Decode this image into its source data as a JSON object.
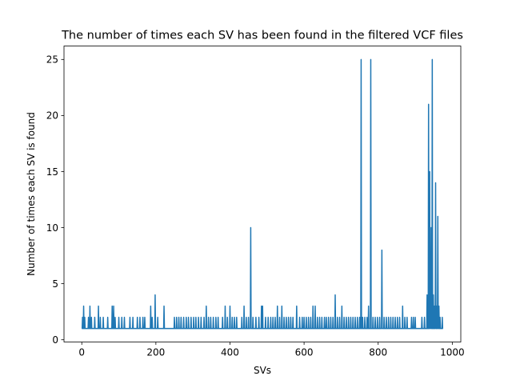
{
  "chart_data": {
    "type": "line",
    "title": "The number of times each SV has been found in the filtered VCF files",
    "xlabel": "SVs",
    "ylabel": "Number of times each SV is found",
    "xlim": [
      -48,
      1023
    ],
    "ylim": [
      -0.2,
      26.2
    ],
    "xticks": [
      0,
      200,
      400,
      600,
      800,
      1000
    ],
    "yticks": [
      0,
      5,
      10,
      15,
      20,
      25
    ],
    "grid": false,
    "legend": "none",
    "color": "#1f77b4",
    "baseline_value": 1,
    "x_range": [
      0,
      975
    ],
    "spikes": [
      [
        2,
        2
      ],
      [
        5,
        3
      ],
      [
        8,
        2
      ],
      [
        12,
        1
      ],
      [
        18,
        2
      ],
      [
        22,
        3
      ],
      [
        26,
        2
      ],
      [
        30,
        1
      ],
      [
        35,
        2
      ],
      [
        45,
        3
      ],
      [
        50,
        2
      ],
      [
        58,
        2
      ],
      [
        65,
        1
      ],
      [
        70,
        2
      ],
      [
        82,
        3
      ],
      [
        86,
        3
      ],
      [
        90,
        2
      ],
      [
        100,
        2
      ],
      [
        108,
        2
      ],
      [
        115,
        2
      ],
      [
        130,
        2
      ],
      [
        138,
        2
      ],
      [
        150,
        2
      ],
      [
        157,
        2
      ],
      [
        165,
        2
      ],
      [
        170,
        2
      ],
      [
        186,
        3
      ],
      [
        190,
        2
      ],
      [
        198,
        4
      ],
      [
        205,
        2
      ],
      [
        222,
        3
      ],
      [
        250,
        2
      ],
      [
        256,
        2
      ],
      [
        262,
        2
      ],
      [
        268,
        2
      ],
      [
        275,
        2
      ],
      [
        282,
        2
      ],
      [
        288,
        2
      ],
      [
        295,
        2
      ],
      [
        302,
        2
      ],
      [
        308,
        2
      ],
      [
        315,
        2
      ],
      [
        322,
        2
      ],
      [
        330,
        2
      ],
      [
        336,
        3
      ],
      [
        342,
        2
      ],
      [
        348,
        2
      ],
      [
        355,
        2
      ],
      [
        362,
        2
      ],
      [
        368,
        2
      ],
      [
        380,
        2
      ],
      [
        387,
        3
      ],
      [
        393,
        2
      ],
      [
        400,
        3
      ],
      [
        406,
        2
      ],
      [
        412,
        2
      ],
      [
        418,
        2
      ],
      [
        432,
        2
      ],
      [
        438,
        3
      ],
      [
        444,
        2
      ],
      [
        450,
        2
      ],
      [
        456,
        10
      ],
      [
        462,
        2
      ],
      [
        470,
        2
      ],
      [
        478,
        2
      ],
      [
        485,
        3
      ],
      [
        488,
        3
      ],
      [
        496,
        2
      ],
      [
        503,
        2
      ],
      [
        510,
        2
      ],
      [
        516,
        2
      ],
      [
        522,
        2
      ],
      [
        528,
        3
      ],
      [
        534,
        2
      ],
      [
        540,
        3
      ],
      [
        546,
        2
      ],
      [
        552,
        2
      ],
      [
        558,
        2
      ],
      [
        564,
        2
      ],
      [
        570,
        2
      ],
      [
        580,
        3
      ],
      [
        588,
        2
      ],
      [
        595,
        2
      ],
      [
        600,
        2
      ],
      [
        606,
        2
      ],
      [
        612,
        2
      ],
      [
        618,
        2
      ],
      [
        624,
        3
      ],
      [
        630,
        3
      ],
      [
        636,
        2
      ],
      [
        642,
        2
      ],
      [
        648,
        2
      ],
      [
        655,
        2
      ],
      [
        660,
        2
      ],
      [
        666,
        2
      ],
      [
        672,
        2
      ],
      [
        678,
        2
      ],
      [
        684,
        4
      ],
      [
        690,
        2
      ],
      [
        696,
        2
      ],
      [
        702,
        3
      ],
      [
        708,
        2
      ],
      [
        714,
        2
      ],
      [
        720,
        2
      ],
      [
        726,
        2
      ],
      [
        732,
        2
      ],
      [
        738,
        2
      ],
      [
        744,
        2
      ],
      [
        750,
        2
      ],
      [
        754,
        25
      ],
      [
        758,
        2
      ],
      [
        764,
        2
      ],
      [
        770,
        2
      ],
      [
        774,
        3
      ],
      [
        780,
        25
      ],
      [
        786,
        2
      ],
      [
        792,
        2
      ],
      [
        798,
        2
      ],
      [
        804,
        2
      ],
      [
        810,
        8
      ],
      [
        816,
        2
      ],
      [
        822,
        2
      ],
      [
        828,
        2
      ],
      [
        834,
        2
      ],
      [
        840,
        2
      ],
      [
        846,
        2
      ],
      [
        852,
        2
      ],
      [
        858,
        2
      ],
      [
        866,
        3
      ],
      [
        872,
        2
      ],
      [
        878,
        2
      ],
      [
        890,
        2
      ],
      [
        895,
        2
      ],
      [
        900,
        2
      ],
      [
        918,
        2
      ],
      [
        925,
        2
      ],
      [
        932,
        4
      ],
      [
        936,
        21
      ],
      [
        939,
        15
      ],
      [
        941,
        5
      ],
      [
        943,
        10
      ],
      [
        946,
        25
      ],
      [
        949,
        4
      ],
      [
        952,
        3
      ],
      [
        955,
        14
      ],
      [
        958,
        3
      ],
      [
        961,
        11
      ],
      [
        964,
        3
      ],
      [
        967,
        2
      ],
      [
        970,
        1
      ],
      [
        973,
        2
      ]
    ]
  }
}
